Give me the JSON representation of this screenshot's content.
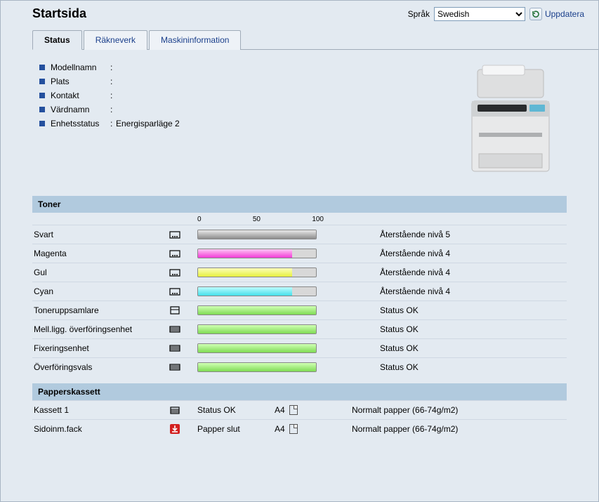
{
  "header": {
    "title": "Startsida",
    "language_label": "Språk",
    "language_value": "Swedish",
    "refresh_label": "Uppdatera"
  },
  "tabs": [
    {
      "label": "Status",
      "active": true
    },
    {
      "label": "Räkneverk",
      "active": false
    },
    {
      "label": "Maskininformation",
      "active": false
    }
  ],
  "info": {
    "bullet_color": "#24509e",
    "rows": [
      {
        "label": "Modellnamn",
        "value": ""
      },
      {
        "label": "Plats",
        "value": ""
      },
      {
        "label": "Kontakt",
        "value": ""
      },
      {
        "label": "Värdnamn",
        "value": ""
      },
      {
        "label": "Enhetsstatus",
        "value": "Energisparläge 2"
      }
    ]
  },
  "toner_section": {
    "title": "Toner",
    "scale": {
      "min": "0",
      "mid": "50",
      "max": "100"
    },
    "track_color": "#d8d8d8",
    "rows": [
      {
        "name": "Svart",
        "percent": 100,
        "fill_top": "#e8e8e8",
        "fill_bottom": "#8d8d8d",
        "status": "Återstående nivå 5",
        "icon": "cartridge"
      },
      {
        "name": "Magenta",
        "percent": 80,
        "fill_top": "#ffc6f3",
        "fill_bottom": "#f23bd8",
        "status": "Återstående nivå 4",
        "icon": "cartridge"
      },
      {
        "name": "Gul",
        "percent": 80,
        "fill_top": "#fbffba",
        "fill_bottom": "#e7ef3e",
        "status": "Återstående nivå 4",
        "icon": "cartridge"
      },
      {
        "name": "Cyan",
        "percent": 80,
        "fill_top": "#befcff",
        "fill_bottom": "#46e0ea",
        "status": "Återstående nivå 4",
        "icon": "cartridge"
      },
      {
        "name": "Toneruppsamlare",
        "percent": 100,
        "fill_top": "#d0ffb4",
        "fill_bottom": "#7fdb54",
        "status": "Status OK",
        "icon": "box"
      },
      {
        "name": "Mell.ligg. överföringsenhet",
        "percent": 100,
        "fill_top": "#d0ffb4",
        "fill_bottom": "#7fdb54",
        "status": "Status OK",
        "icon": "unit"
      },
      {
        "name": "Fixeringsenhet",
        "percent": 100,
        "fill_top": "#d0ffb4",
        "fill_bottom": "#7fdb54",
        "status": "Status OK",
        "icon": "unit"
      },
      {
        "name": "Överföringsvals",
        "percent": 100,
        "fill_top": "#d0ffb4",
        "fill_bottom": "#7fdb54",
        "status": "Status OK",
        "icon": "unit"
      }
    ]
  },
  "tray_section": {
    "title": "Papperskassett",
    "rows": [
      {
        "name": "Kassett 1",
        "status": "Status OK",
        "size": "A4",
        "type": "Normalt papper (66-74g/m2)",
        "icon": "tray",
        "icon_color": "#000000"
      },
      {
        "name": "Sidoinm.fack",
        "status": "Papper slut",
        "size": "A4",
        "type": "Normalt papper (66-74g/m2)",
        "icon": "empty",
        "icon_color": "#d32020"
      }
    ]
  },
  "colors": {
    "page_bg": "#e3eaf1",
    "section_header_bg": "#b1cade",
    "link_color": "#1a3f8b",
    "border": "#a0abb8"
  }
}
